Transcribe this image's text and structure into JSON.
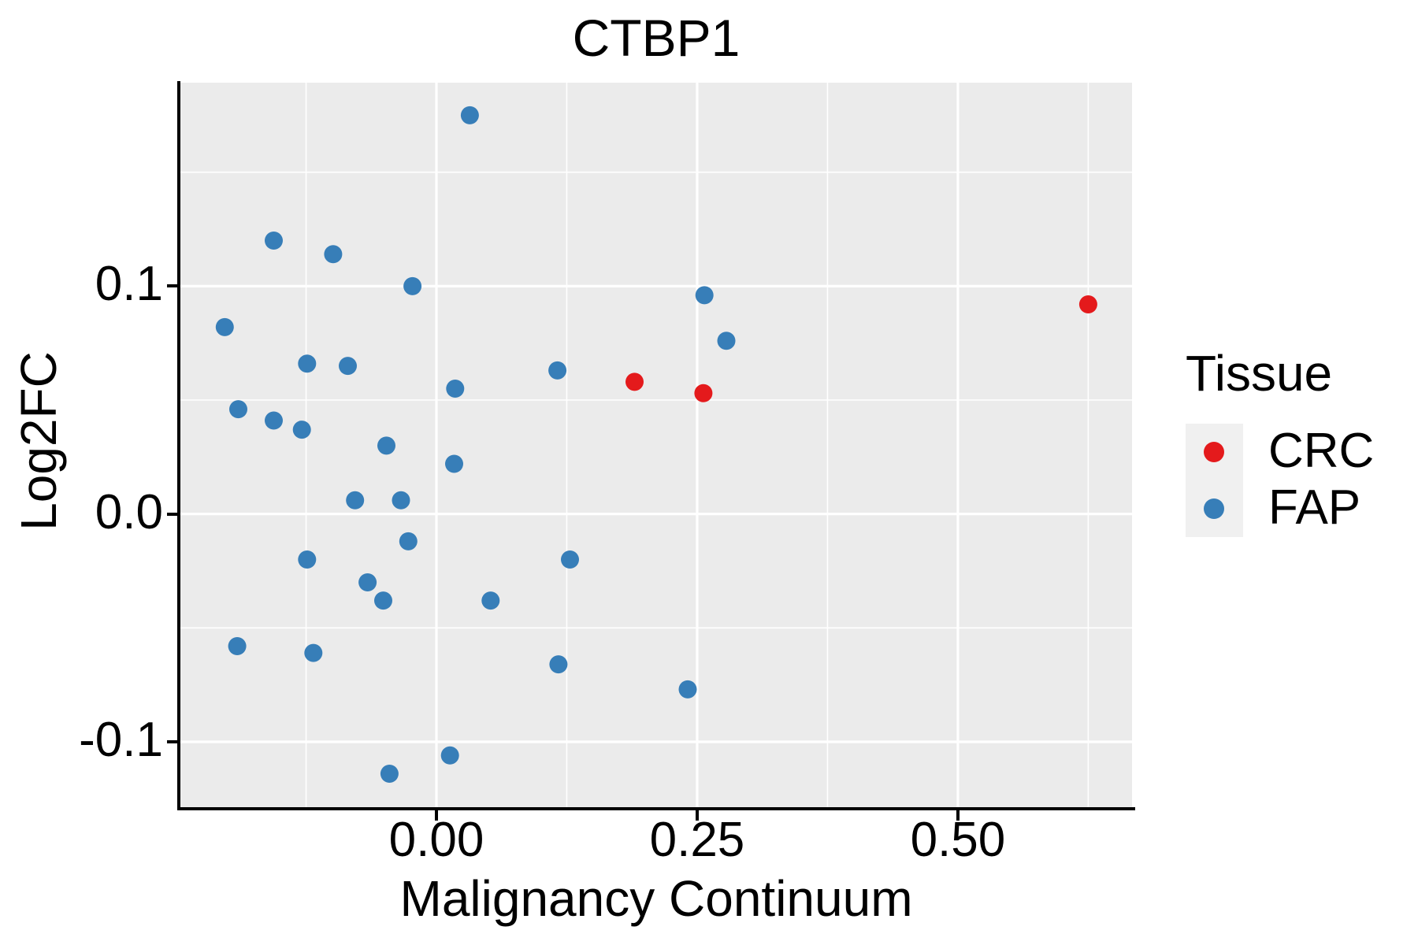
{
  "title": "CTBP1",
  "axes": {
    "x": {
      "label": "Malignancy Continuum",
      "tick_labels": [
        "0.00",
        "0.25",
        "0.50"
      ],
      "tick_values": [
        0.0,
        0.25,
        0.5
      ],
      "minor_tick_values": [
        -0.125,
        0.125,
        0.375,
        0.625
      ]
    },
    "y": {
      "label": "Log2FC",
      "tick_labels": [
        "0.1",
        "0.0",
        "-0.1"
      ],
      "tick_values": [
        0.1,
        0.0,
        -0.1
      ],
      "minor_tick_values": [
        0.15,
        0.05,
        -0.05
      ]
    }
  },
  "legend": {
    "title": "Tissue",
    "entries": [
      {
        "label": "CRC",
        "color": "#E41A1C"
      },
      {
        "label": "FAP",
        "color": "#377EB8"
      }
    ]
  },
  "colors": {
    "panel_background": "#EBEBEB",
    "gridline": "#FFFFFF",
    "axis": "#000000",
    "crc": "#E41A1C",
    "fap": "#377EB8",
    "legend_key_background": "#F0F0F0"
  },
  "chart_data": {
    "type": "scatter",
    "title": "CTBP1",
    "xlabel": "Malignancy Continuum",
    "ylabel": "Log2FC",
    "xlim": [
      -0.2455,
      0.667
    ],
    "ylim": [
      -0.1287,
      0.1893
    ],
    "grid": "on",
    "legend_position": "right",
    "legend_title": "Tissue",
    "series": [
      {
        "name": "CRC",
        "color": "#E41A1C",
        "points": [
          [
            0.19,
            0.058
          ],
          [
            0.256,
            0.053
          ],
          [
            0.625,
            0.092
          ]
        ]
      },
      {
        "name": "FAP",
        "color": "#377EB8",
        "points": [
          [
            0.032,
            0.175
          ],
          [
            -0.156,
            0.12
          ],
          [
            -0.099,
            0.114
          ],
          [
            -0.023,
            0.1
          ],
          [
            -0.203,
            0.082
          ],
          [
            -0.124,
            0.066
          ],
          [
            -0.085,
            0.065
          ],
          [
            0.018,
            0.055
          ],
          [
            -0.19,
            0.046
          ],
          [
            -0.156,
            0.041
          ],
          [
            -0.129,
            0.037
          ],
          [
            -0.048,
            0.03
          ],
          [
            0.017,
            0.022
          ],
          [
            -0.078,
            0.006
          ],
          [
            -0.034,
            0.006
          ],
          [
            -0.027,
            -0.012
          ],
          [
            -0.124,
            -0.02
          ],
          [
            -0.066,
            -0.03
          ],
          [
            -0.051,
            -0.038
          ],
          [
            0.052,
            -0.038
          ],
          [
            -0.191,
            -0.058
          ],
          [
            -0.118,
            -0.061
          ],
          [
            0.013,
            -0.106
          ],
          [
            -0.045,
            -0.114
          ],
          [
            0.257,
            0.096
          ],
          [
            0.278,
            0.076
          ],
          [
            0.116,
            0.063
          ],
          [
            0.128,
            -0.02
          ],
          [
            0.117,
            -0.066
          ],
          [
            0.241,
            -0.077
          ]
        ]
      }
    ]
  }
}
